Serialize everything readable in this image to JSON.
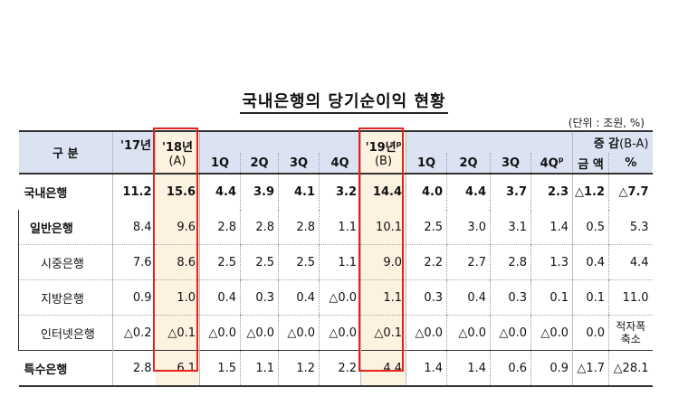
{
  "title": "국내은행의 당기순이익 현황",
  "unit": "(단위 : 조원, %)",
  "header": {
    "category": "구 분",
    "y17": "'17년",
    "y18": "'18년",
    "y18_sub": "(A)",
    "y19": "'19년",
    "y19_sup": "p",
    "y19_sub": "(B)",
    "change": "증 감",
    "change_sub": "(B-A)",
    "q18": [
      "1Q",
      "2Q",
      "3Q",
      "4Q"
    ],
    "q19": [
      "1Q",
      "2Q",
      "3Q",
      "4Q"
    ],
    "q19_4_sup": "p",
    "amount": "금 액",
    "pct": "%"
  },
  "rows": [
    {
      "label": "국내은행",
      "cells": [
        "11.2",
        "15.6",
        "4.4",
        "3.9",
        "4.1",
        "3.2",
        "14.4",
        "4.0",
        "4.4",
        "3.7",
        "2.3",
        "△1.2",
        "△7.7"
      ]
    },
    {
      "label": "일반은행",
      "cells": [
        "8.4",
        "9.6",
        "2.8",
        "2.8",
        "2.8",
        "1.1",
        "10.1",
        "2.5",
        "3.0",
        "3.1",
        "1.4",
        "0.5",
        "5.3"
      ]
    },
    {
      "label": "시중은행",
      "cells": [
        "7.6",
        "8.6",
        "2.5",
        "2.5",
        "2.5",
        "1.1",
        "9.0",
        "2.2",
        "2.7",
        "2.8",
        "1.3",
        "0.4",
        "4.4"
      ]
    },
    {
      "label": "지방은행",
      "cells": [
        "0.9",
        "1.0",
        "0.4",
        "0.3",
        "0.4",
        "△0.0",
        "1.1",
        "0.3",
        "0.4",
        "0.3",
        "0.1",
        "0.1",
        "11.0"
      ]
    },
    {
      "label": "인터넷은행",
      "cells": [
        "△0.2",
        "△0.1",
        "△0.0",
        "△0.0",
        "△0.0",
        "△0.0",
        "△0.1",
        "△0.0",
        "△0.0",
        "△0.0",
        "△0.0",
        "0.0",
        "적자폭 축소"
      ]
    },
    {
      "label": "특수은행",
      "cells": [
        "2.8",
        "6.1",
        "1.5",
        "1.1",
        "1.2",
        "2.2",
        "4.4",
        "1.4",
        "1.4",
        "0.6",
        "0.9",
        "△1.7",
        "△28.1"
      ]
    }
  ]
}
